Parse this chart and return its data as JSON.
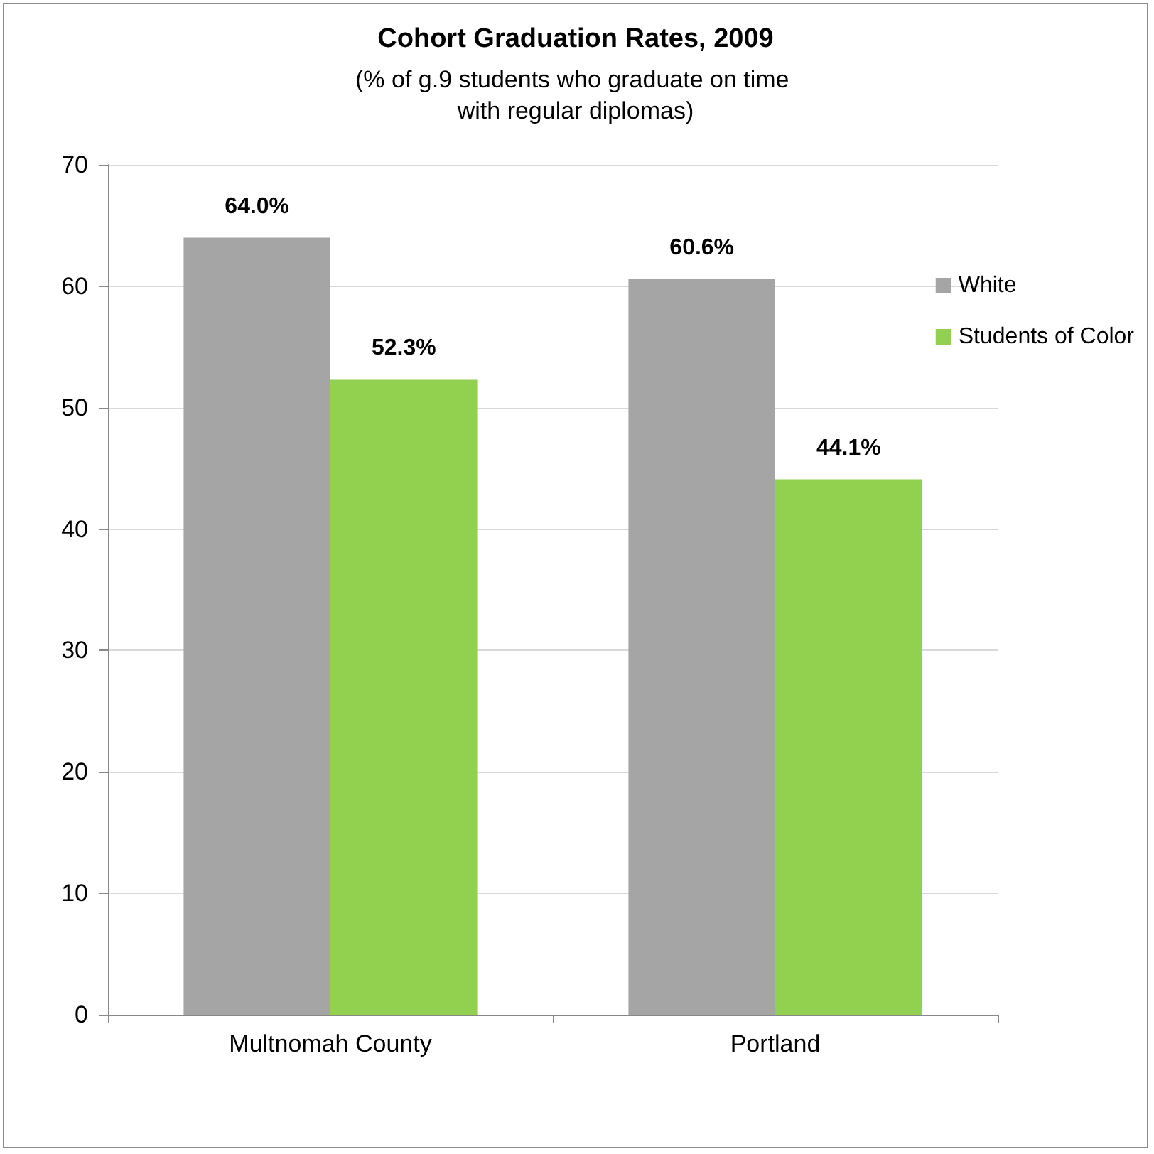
{
  "chart_data": {
    "type": "bar",
    "title": "Cohort Graduation Rates, 2009",
    "subtitle": "(% of g.9 students who graduate on time with regular diplomas)",
    "categories": [
      "Multnomah County",
      "Portland"
    ],
    "series": [
      {
        "name": "White",
        "color": "#a5a5a5",
        "values": [
          64.0,
          60.6
        ],
        "value_labels": [
          "64.0%",
          "60.6%"
        ]
      },
      {
        "name": "Students of Color",
        "color": "#92d050",
        "values": [
          52.3,
          44.1
        ],
        "value_labels": [
          "52.3%",
          "44.1%"
        ]
      }
    ],
    "ylim": [
      0,
      70
    ],
    "yticks": [
      0,
      10,
      20,
      30,
      40,
      50,
      60,
      70
    ],
    "grid": "y",
    "legend": "right"
  }
}
